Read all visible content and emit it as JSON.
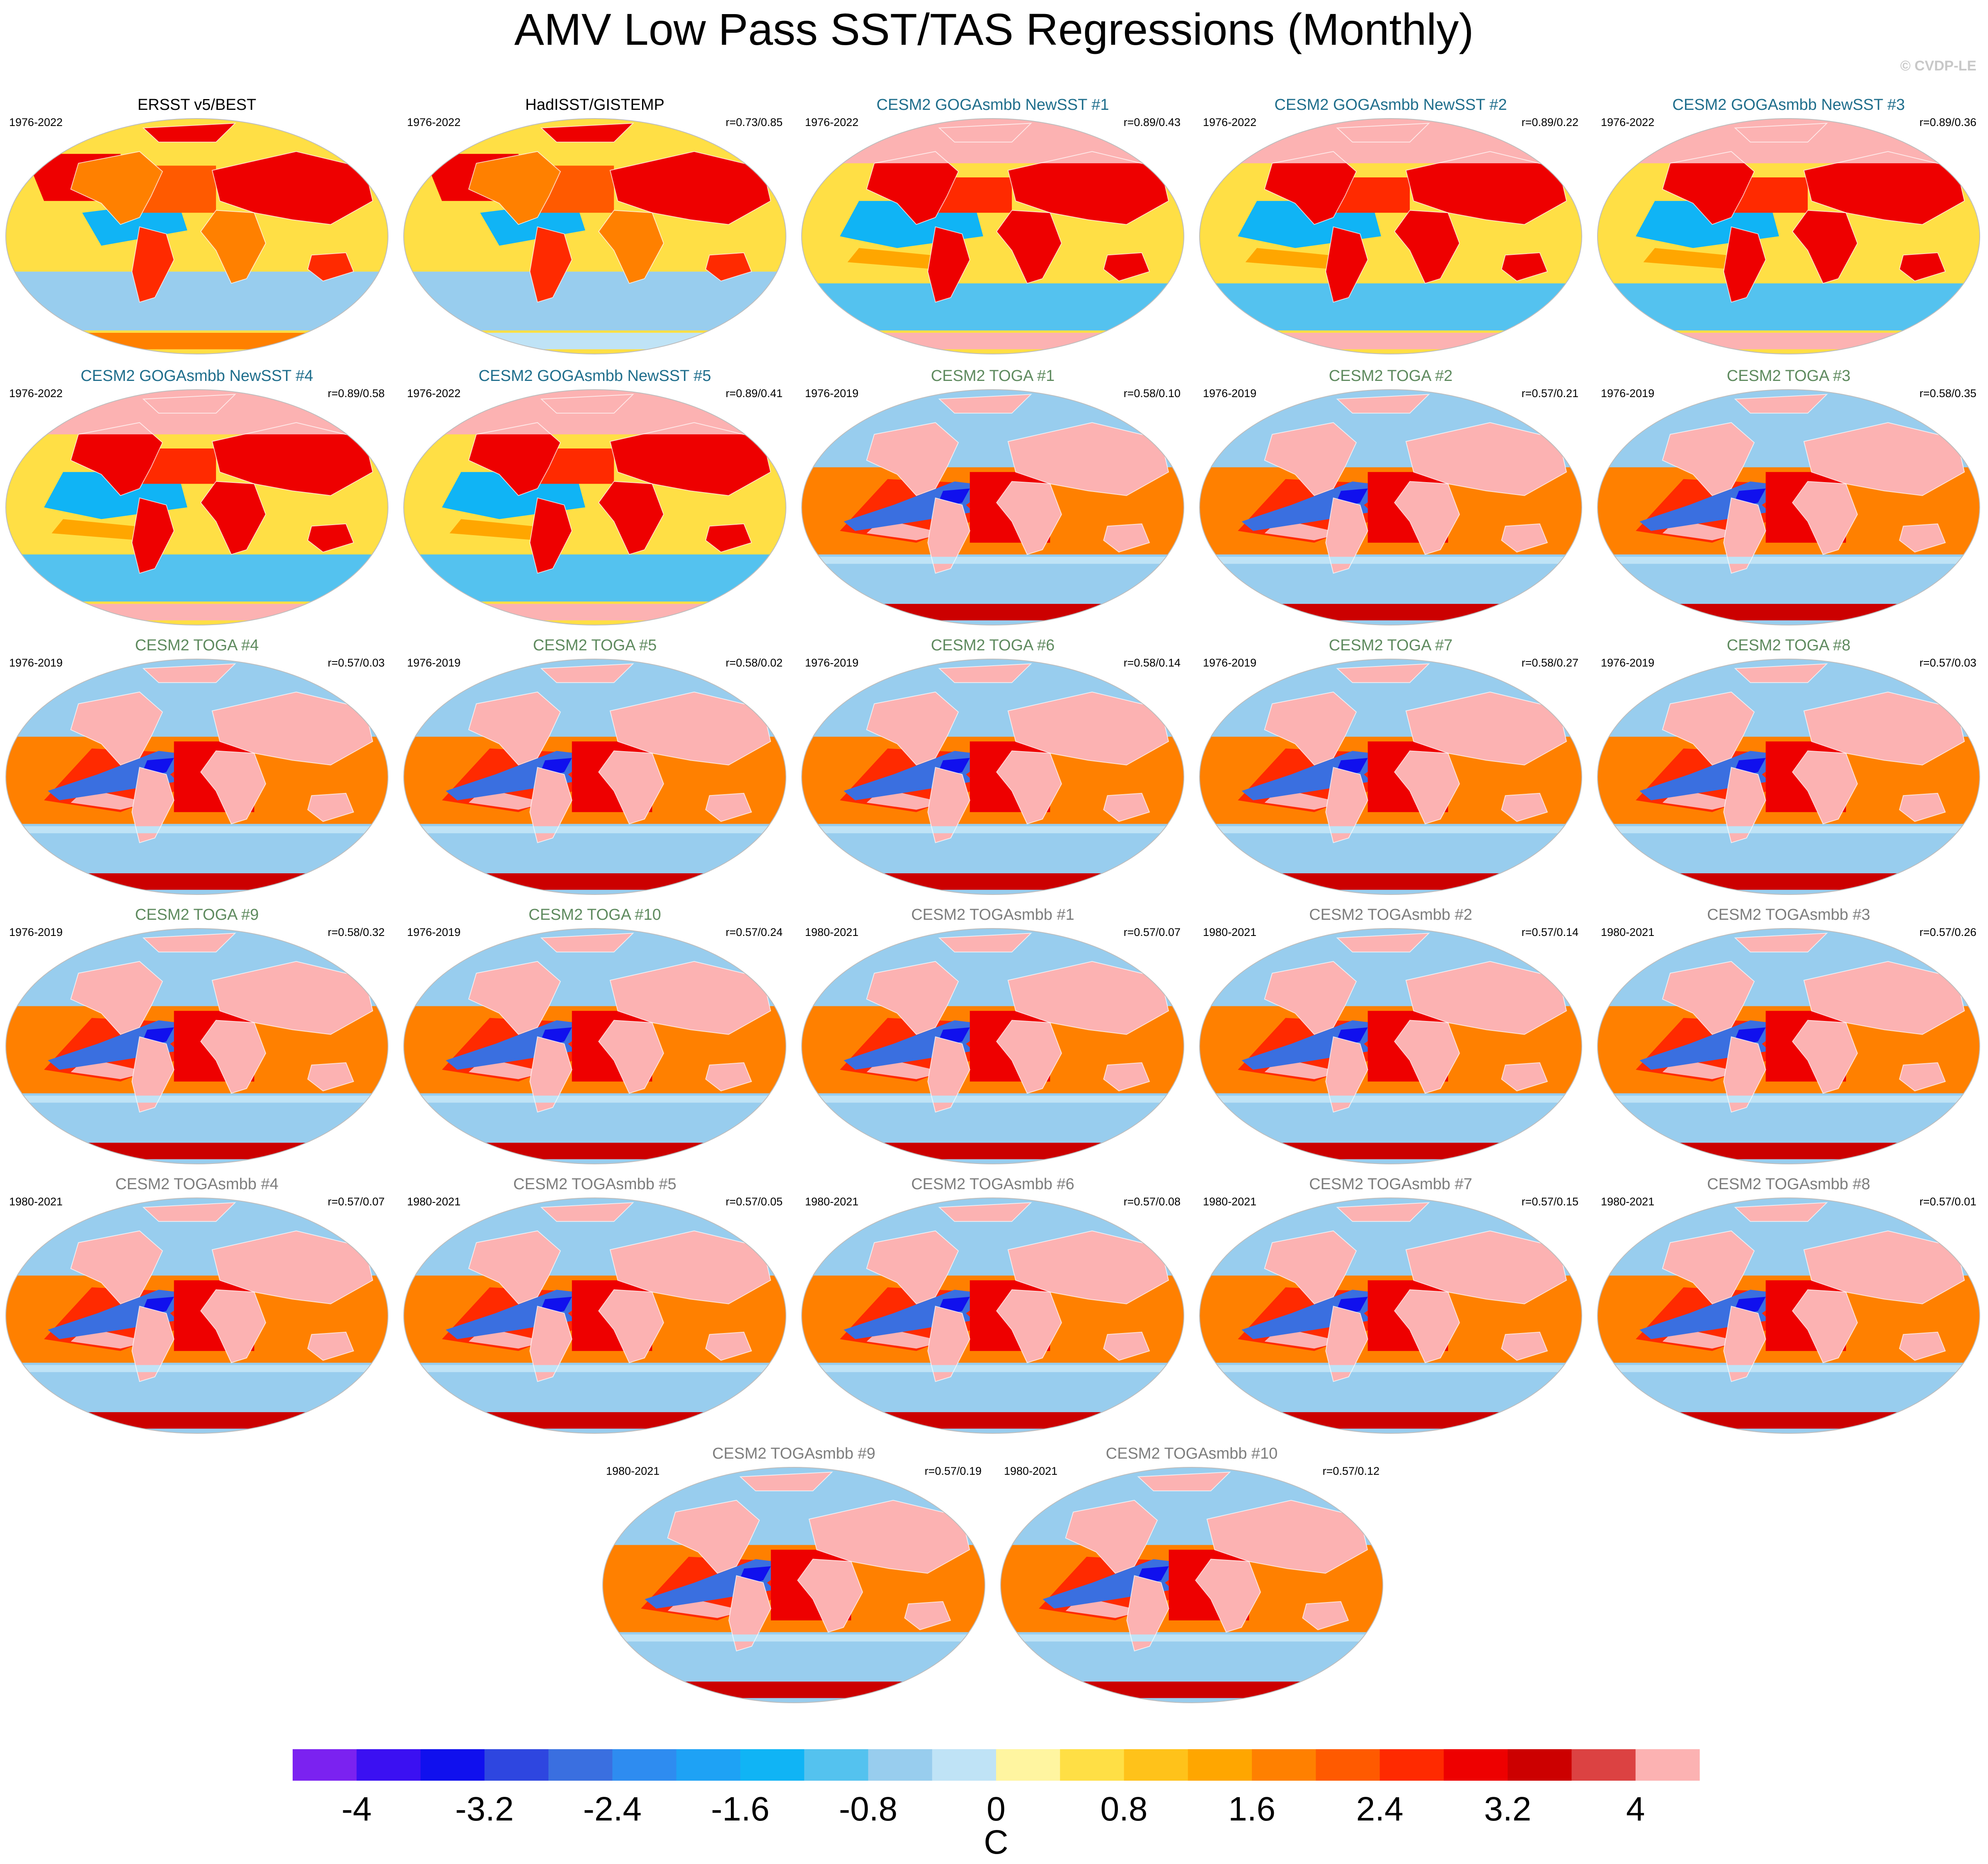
{
  "page": {
    "title": "AMV Low Pass SST/TAS Regressions (Monthly)",
    "watermark": "© CVDP-LE"
  },
  "colors": {
    "obs_title": "#000000",
    "goga_title": "#1f6e8c",
    "toga_title": "#5e8a5e",
    "togasmbb_title": "#7d7d7d",
    "map_border": "#bdbdbd"
  },
  "chart_data": {
    "type": "heatmap",
    "panels": [
      {
        "title": "ERSST v5/BEST",
        "years": "1976-2022",
        "corr": "",
        "group": "obs",
        "pattern": "obs1"
      },
      {
        "title": "HadISST/GISTEMP",
        "years": "1976-2022",
        "corr": "r=0.73/0.85",
        "group": "obs",
        "pattern": "obs2"
      },
      {
        "title": "CESM2 GOGAsmbb NewSST #1",
        "years": "1976-2022",
        "corr": "r=0.89/0.43",
        "group": "goga",
        "pattern": "goga"
      },
      {
        "title": "CESM2 GOGAsmbb NewSST #2",
        "years": "1976-2022",
        "corr": "r=0.89/0.22",
        "group": "goga",
        "pattern": "goga"
      },
      {
        "title": "CESM2 GOGAsmbb NewSST #3",
        "years": "1976-2022",
        "corr": "r=0.89/0.36",
        "group": "goga",
        "pattern": "goga"
      },
      {
        "title": "CESM2 GOGAsmbb NewSST #4",
        "years": "1976-2022",
        "corr": "r=0.89/0.58",
        "group": "goga",
        "pattern": "goga"
      },
      {
        "title": "CESM2 GOGAsmbb NewSST #5",
        "years": "1976-2022",
        "corr": "r=0.89/0.41",
        "group": "goga",
        "pattern": "goga"
      },
      {
        "title": "CESM2 TOGA #1",
        "years": "1976-2019",
        "corr": "r=0.58/0.10",
        "group": "toga",
        "pattern": "toga"
      },
      {
        "title": "CESM2 TOGA #2",
        "years": "1976-2019",
        "corr": "r=0.57/0.21",
        "group": "toga",
        "pattern": "toga"
      },
      {
        "title": "CESM2 TOGA #3",
        "years": "1976-2019",
        "corr": "r=0.58/0.35",
        "group": "toga",
        "pattern": "toga"
      },
      {
        "title": "CESM2 TOGA #4",
        "years": "1976-2019",
        "corr": "r=0.57/0.03",
        "group": "toga",
        "pattern": "toga"
      },
      {
        "title": "CESM2 TOGA #5",
        "years": "1976-2019",
        "corr": "r=0.58/0.02",
        "group": "toga",
        "pattern": "toga"
      },
      {
        "title": "CESM2 TOGA #6",
        "years": "1976-2019",
        "corr": "r=0.58/0.14",
        "group": "toga",
        "pattern": "toga"
      },
      {
        "title": "CESM2 TOGA #7",
        "years": "1976-2019",
        "corr": "r=0.58/0.27",
        "group": "toga",
        "pattern": "toga"
      },
      {
        "title": "CESM2 TOGA #8",
        "years": "1976-2019",
        "corr": "r=0.57/0.03",
        "group": "toga",
        "pattern": "toga"
      },
      {
        "title": "CESM2 TOGA #9",
        "years": "1976-2019",
        "corr": "r=0.58/0.32",
        "group": "toga",
        "pattern": "toga"
      },
      {
        "title": "CESM2 TOGA #10",
        "years": "1976-2019",
        "corr": "r=0.57/0.24",
        "group": "toga",
        "pattern": "toga"
      },
      {
        "title": "CESM2 TOGAsmbb #1",
        "years": "1980-2021",
        "corr": "r=0.57/0.07",
        "group": "togasmbb",
        "pattern": "toga"
      },
      {
        "title": "CESM2 TOGAsmbb #2",
        "years": "1980-2021",
        "corr": "r=0.57/0.14",
        "group": "togasmbb",
        "pattern": "toga"
      },
      {
        "title": "CESM2 TOGAsmbb #3",
        "years": "1980-2021",
        "corr": "r=0.57/0.26",
        "group": "togasmbb",
        "pattern": "toga"
      },
      {
        "title": "CESM2 TOGAsmbb #4",
        "years": "1980-2021",
        "corr": "r=0.57/0.07",
        "group": "togasmbb",
        "pattern": "toga"
      },
      {
        "title": "CESM2 TOGAsmbb #5",
        "years": "1980-2021",
        "corr": "r=0.57/0.05",
        "group": "togasmbb",
        "pattern": "toga"
      },
      {
        "title": "CESM2 TOGAsmbb #6",
        "years": "1980-2021",
        "corr": "r=0.57/0.08",
        "group": "togasmbb",
        "pattern": "toga"
      },
      {
        "title": "CESM2 TOGAsmbb #7",
        "years": "1980-2021",
        "corr": "r=0.57/0.15",
        "group": "togasmbb",
        "pattern": "toga"
      },
      {
        "title": "CESM2 TOGAsmbb #8",
        "years": "1980-2021",
        "corr": "r=0.57/0.01",
        "group": "togasmbb",
        "pattern": "toga"
      },
      {
        "title": "CESM2 TOGAsmbb #9",
        "years": "1980-2021",
        "corr": "r=0.57/0.19",
        "group": "togasmbb",
        "pattern": "toga"
      },
      {
        "title": "CESM2 TOGAsmbb #10",
        "years": "1980-2021",
        "corr": "r=0.57/0.12",
        "group": "togasmbb",
        "pattern": "toga"
      }
    ],
    "colorbar": {
      "unit": "C",
      "range": [
        -4.4,
        4.4
      ],
      "boundaries": [
        -4,
        -3.6,
        -3.2,
        -2.8,
        -2.4,
        -2,
        -1.6,
        -1.2,
        -0.8,
        -0.4,
        0,
        0.4,
        0.8,
        1.2,
        1.6,
        2,
        2.4,
        2.8,
        3.2,
        3.6,
        4
      ],
      "tick_labels": [
        "-4",
        "-3.2",
        "-2.4",
        "-1.6",
        "-0.8",
        "0",
        "0.8",
        "1.6",
        "2.4",
        "3.2",
        "4"
      ],
      "tick_values": [
        -4,
        -3.2,
        -2.4,
        -1.6,
        -0.8,
        0,
        0.8,
        1.6,
        2.4,
        3.2,
        4
      ],
      "colors": [
        "#7b22f0",
        "#3b10f2",
        "#1010ee",
        "#2e46e0",
        "#3a6fe0",
        "#2e8cf0",
        "#1ea2f5",
        "#10b4f5",
        "#54c2ef",
        "#98cdee",
        "#bfe3f6",
        "#fff5a0",
        "#ffdf45",
        "#ffc21a",
        "#ffa600",
        "#ff8000",
        "#ff5a00",
        "#ff2a00",
        "#ee0000",
        "#cc0000",
        "#dc4242",
        "#fcb2b2"
      ]
    }
  }
}
